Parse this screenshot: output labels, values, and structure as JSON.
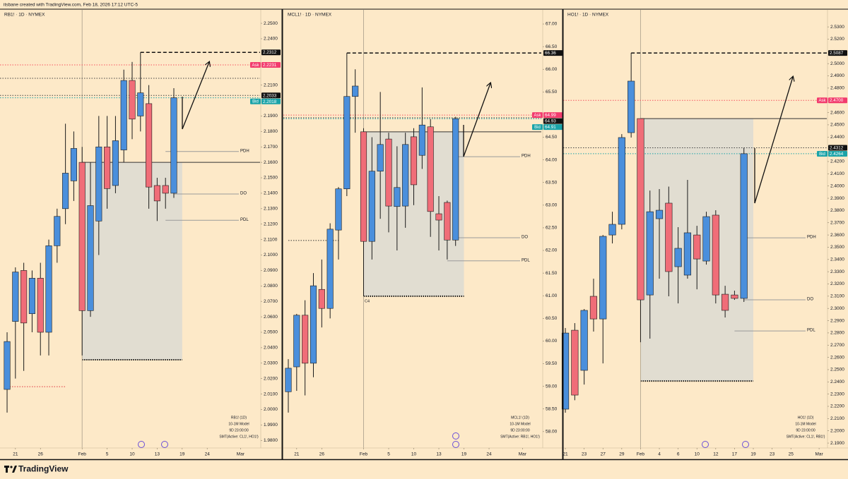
{
  "header": "itsbane created with TradingView.com, Feb 18, 2026 17:12 UTC-5",
  "brand": "TradingView",
  "chart_data": [
    {
      "type": "candlestick",
      "title": "RB1! · 1D · NYMEX",
      "x": [
        0,
        1,
        2,
        3,
        4,
        5,
        6,
        7,
        8,
        9,
        10,
        11,
        12,
        13,
        14,
        15,
        16,
        17,
        18,
        19,
        20
      ],
      "open": [
        2.013,
        2.057,
        2.09,
        2.062,
        2.085,
        2.05,
        2.106,
        2.13,
        2.148,
        2.16,
        2.064,
        2.122,
        2.17,
        2.145,
        2.168,
        2.213,
        2.19,
        2.198,
        2.145,
        2.145,
        2.14
      ],
      "high": [
        2.05,
        2.092,
        2.095,
        2.09,
        2.095,
        2.11,
        2.13,
        2.185,
        2.18,
        2.17,
        2.16,
        2.19,
        2.19,
        2.19,
        2.22,
        2.225,
        2.2312,
        2.21,
        2.15,
        2.15,
        2.208
      ],
      "low": [
        1.998,
        2.02,
        2.025,
        2.05,
        2.035,
        2.035,
        2.095,
        2.12,
        2.135,
        2.035,
        2.06,
        2.1,
        2.13,
        2.14,
        2.16,
        2.175,
        2.18,
        2.13,
        2.122,
        2.13,
        2.137
      ],
      "close": [
        2.044,
        2.089,
        2.056,
        2.085,
        2.05,
        2.106,
        2.125,
        2.153,
        2.169,
        2.064,
        2.132,
        2.17,
        2.143,
        2.174,
        2.213,
        2.188,
        2.205,
        2.144,
        2.135,
        2.14,
        2.2018
      ],
      "up_color": "#4a8fdc",
      "down_color": "#f06d78",
      "xlim": [
        -0.85,
        30.34
      ],
      "ylim": [
        1.9751,
        2.2587
      ],
      "xticks": [
        {
          "value": 1,
          "label": "21"
        },
        {
          "value": 4,
          "label": "26"
        },
        {
          "value": 9,
          "label": "Feb"
        },
        {
          "value": 12,
          "label": "5"
        },
        {
          "value": 15,
          "label": "10"
        },
        {
          "value": 18,
          "label": "13"
        },
        {
          "value": 21,
          "label": "19"
        },
        {
          "value": 24,
          "label": "24"
        },
        {
          "value": 28,
          "label": "Mar"
        }
      ],
      "yticks": [
        {
          "value": 2.25,
          "label": "2.2500"
        },
        {
          "value": 2.24,
          "label": "2.2400"
        },
        {
          "value": 2.21,
          "label": "2.2100"
        },
        {
          "value": 2.19,
          "label": "2.1900"
        },
        {
          "value": 2.18,
          "label": "2.1800"
        },
        {
          "value": 2.17,
          "label": "2.1700"
        },
        {
          "value": 2.16,
          "label": "2.1600"
        },
        {
          "value": 2.15,
          "label": "2.1500"
        },
        {
          "value": 2.14,
          "label": "2.1400"
        },
        {
          "value": 2.13,
          "label": "2.1300"
        },
        {
          "value": 2.12,
          "label": "2.1200"
        },
        {
          "value": 2.11,
          "label": "2.1100"
        },
        {
          "value": 2.1,
          "label": "2.1000"
        },
        {
          "value": 2.09,
          "label": "2.0900"
        },
        {
          "value": 2.08,
          "label": "2.0800"
        },
        {
          "value": 2.07,
          "label": "2.0700"
        },
        {
          "value": 2.06,
          "label": "2.0600"
        },
        {
          "value": 2.05,
          "label": "2.0500"
        },
        {
          "value": 2.04,
          "label": "2.0400"
        },
        {
          "value": 2.03,
          "label": "2.0300"
        },
        {
          "value": 2.02,
          "label": "2.0200"
        },
        {
          "value": 2.01,
          "label": "2.0100"
        },
        {
          "value": 2.0,
          "label": "2.0000"
        },
        {
          "value": 1.99,
          "label": "1.9900"
        },
        {
          "value": 1.98,
          "label": "1.9800"
        }
      ],
      "levels": [
        {
          "value": 2.2312,
          "start": 16,
          "style": "dashed",
          "color": "#111111",
          "tag_color": "#111111"
        },
        {
          "name": "Ask",
          "value": 2.2231,
          "style": "dotted",
          "color": "#f7525f",
          "tag_color": "#f23b6d"
        },
        {
          "value": 2.2144,
          "style": "dotted",
          "color": "#444444"
        },
        {
          "value": 2.2033,
          "style": "dotted",
          "color": "#444444",
          "tag_color": "#111111"
        },
        {
          "name": "Bid",
          "value": 2.2018,
          "style": "dotted",
          "color": "#1aa3a8",
          "tag_color": "#1aa3a8"
        },
        {
          "value": 2.16,
          "start": 9,
          "style": "solid",
          "color": "#333333"
        },
        {
          "name": "PDH",
          "value": 2.167,
          "start": 19,
          "style": "solid",
          "color": "#9a9a9a"
        },
        {
          "name": "DO",
          "value": 2.1395,
          "start": 20,
          "style": "solid",
          "color": "#9a9a9a"
        },
        {
          "name": "PDL",
          "value": 2.1225,
          "start": 19,
          "style": "solid",
          "color": "#9a9a9a"
        },
        {
          "value": 2.0148,
          "start": 0,
          "end": 7,
          "style": "dotted",
          "color": "#e0343f"
        }
      ],
      "box": {
        "x": [
          9,
          21
        ],
        "y": [
          2.0322,
          2.16
        ],
        "color": "#dcdad2"
      },
      "info": [
        "RB1! (1D)",
        "10-1M Model",
        "9D 23:00:00",
        "SMT(Active: CL1!, HO1!)"
      ]
    },
    {
      "type": "candlestick",
      "title": "MCL1! · 1D · NYMEX",
      "x": [
        0,
        1,
        2,
        3,
        4,
        5,
        6,
        7,
        8,
        9,
        10,
        11,
        12,
        13,
        14,
        15,
        16,
        17,
        18,
        19,
        20
      ],
      "open": [
        58.88,
        59.43,
        60.57,
        59.51,
        61.14,
        60.72,
        62.45,
        63.36,
        65.4,
        64.62,
        62.2,
        63.75,
        64.46,
        62.97,
        62.98,
        64.51,
        64.1,
        64.73,
        62.81,
        63.06,
        62.23
      ],
      "high": [
        59.6,
        60.6,
        60.9,
        61.5,
        61.8,
        62.6,
        63.4,
        66.36,
        66.0,
        64.7,
        64.5,
        65.5,
        64.6,
        64.3,
        64.6,
        64.7,
        65.6,
        64.9,
        63.2,
        63.1,
        64.95
      ],
      "low": [
        58.42,
        58.9,
        58.8,
        59.2,
        60.3,
        60.5,
        61.8,
        63.2,
        64.6,
        60.99,
        61.8,
        62.7,
        62.4,
        62.0,
        62.5,
        63.0,
        63.8,
        62.3,
        62.0,
        61.8,
        62.1
      ],
      "close": [
        59.4,
        60.57,
        59.51,
        61.22,
        60.72,
        62.47,
        63.36,
        65.4,
        65.63,
        62.2,
        63.75,
        64.34,
        62.98,
        63.39,
        64.34,
        63.45,
        64.77,
        62.86,
        62.67,
        62.23,
        64.91
      ],
      "up_color": "#4a8fdc",
      "down_color": "#f06d78",
      "xlim": [
        -0.59,
        30.25
      ],
      "ylim": [
        57.639,
        67.312
      ],
      "xticks": [
        {
          "value": 1,
          "label": "21"
        },
        {
          "value": 4,
          "label": "26"
        },
        {
          "value": 9,
          "label": "Feb"
        },
        {
          "value": 12,
          "label": "5"
        },
        {
          "value": 15,
          "label": "10"
        },
        {
          "value": 18,
          "label": "13"
        },
        {
          "value": 21,
          "label": "19"
        },
        {
          "value": 24,
          "label": "24"
        },
        {
          "value": 28,
          "label": "Mar"
        }
      ],
      "yticks": [
        {
          "value": 67,
          "label": "67.00"
        },
        {
          "value": 66.5,
          "label": "66.50"
        },
        {
          "value": 66,
          "label": "66.00"
        },
        {
          "value": 65.5,
          "label": "65.50"
        },
        {
          "value": 64.5,
          "label": "64.50"
        },
        {
          "value": 64,
          "label": "64.00"
        },
        {
          "value": 63.5,
          "label": "63.50"
        },
        {
          "value": 63,
          "label": "63.00"
        },
        {
          "value": 62.5,
          "label": "62.50"
        },
        {
          "value": 62,
          "label": "62.00"
        },
        {
          "value": 61.5,
          "label": "61.50"
        },
        {
          "value": 61,
          "label": "61.00"
        },
        {
          "value": 60.5,
          "label": "60.50"
        },
        {
          "value": 60,
          "label": "60.00"
        },
        {
          "value": 59.5,
          "label": "59.50"
        },
        {
          "value": 59,
          "label": "59.00"
        },
        {
          "value": 58.5,
          "label": "58.50"
        },
        {
          "value": 58,
          "label": "58.00"
        }
      ],
      "levels": [
        {
          "value": 66.36,
          "start": 7,
          "style": "dashed",
          "color": "#111111",
          "tag_color": "#111111"
        },
        {
          "name": "Ask",
          "value": 64.99,
          "style": "dotted",
          "color": "#f7525f",
          "tag_color": "#f23b6d"
        },
        {
          "value": 64.93,
          "style": "dotted",
          "color": "#444444",
          "tag_color": "#111111"
        },
        {
          "name": "Bid",
          "value": 64.91,
          "style": "dotted",
          "color": "#1aa3a8",
          "tag_color": "#1aa3a8"
        },
        {
          "value": 64.62,
          "start": 9,
          "style": "solid",
          "color": "#333333"
        },
        {
          "name": "PDH",
          "value": 64.07,
          "start": 20,
          "style": "solid",
          "color": "#9a9a9a"
        },
        {
          "name": "DO",
          "value": 62.28,
          "start": 20,
          "style": "solid",
          "color": "#9a9a9a"
        },
        {
          "name": "PDL",
          "value": 61.77,
          "start": 19,
          "style": "solid",
          "color": "#9a9a9a"
        },
        {
          "value": 62.22,
          "start": 0,
          "end": 6,
          "style": "dotted",
          "color": "#333333"
        }
      ],
      "box": {
        "x": [
          9,
          21
        ],
        "y": [
          60.99,
          64.62
        ],
        "color": "#dcdad2",
        "note": "C4"
      },
      "info": [
        "MCL1! (1D)",
        "10-1M Model",
        "9D 23:00:00",
        "SMT(Active: RB1!, HO1!)"
      ]
    },
    {
      "type": "candlestick",
      "title": "HO1! · 1D · NYMEX",
      "x": [
        0,
        1,
        2,
        3,
        4,
        5,
        6,
        7,
        8,
        9,
        10,
        11,
        12,
        13,
        14,
        15,
        16,
        17,
        18,
        19
      ],
      "open": [
        2.2177,
        2.2822,
        2.2494,
        2.3099,
        2.2914,
        2.36,
        2.3687,
        2.4436,
        2.4551,
        2.311,
        2.3733,
        2.386,
        2.3341,
        2.3272,
        2.36,
        2.3387,
        2.3762,
        2.3116,
        2.311,
        2.3082
      ],
      "high": [
        2.284,
        2.288,
        2.2995,
        2.3243,
        2.36,
        2.379,
        2.4424,
        2.5087,
        2.4551,
        2.3963,
        2.3975,
        2.3995,
        2.3664,
        2.405,
        2.3675,
        2.379,
        2.3802,
        2.3185,
        2.3145,
        2.4312
      ],
      "low": [
        2.2148,
        2.225,
        2.2378,
        2.2811,
        2.2551,
        2.3531,
        2.3646,
        2.4396,
        2.2724,
        2.2753,
        2.3243,
        2.3099,
        2.3041,
        2.3243,
        2.3156,
        2.3358,
        2.3041,
        2.2926,
        2.307,
        2.3053
      ],
      "close": [
        2.2799,
        2.2292,
        2.2984,
        2.2914,
        2.3589,
        2.3687,
        2.4396,
        2.4857,
        2.307,
        2.379,
        2.3802,
        2.3301,
        2.3491,
        2.3618,
        2.3404,
        2.375,
        2.311,
        2.2984,
        2.3082,
        2.4264
      ],
      "up_color": "#4a8fdc",
      "down_color": "#f06d78",
      "xlim": [
        -0.23,
        27.82
      ],
      "ylim": [
        2.186,
        2.5439
      ],
      "xticks": [
        {
          "value": 0,
          "label": "21"
        },
        {
          "value": 2,
          "label": "23"
        },
        {
          "value": 4,
          "label": "27"
        },
        {
          "value": 6,
          "label": "29"
        },
        {
          "value": 8,
          "label": "Feb"
        },
        {
          "value": 10,
          "label": "4"
        },
        {
          "value": 12,
          "label": "6"
        },
        {
          "value": 14,
          "label": "10"
        },
        {
          "value": 16,
          "label": "12"
        },
        {
          "value": 18,
          "label": "17"
        },
        {
          "value": 20,
          "label": "19"
        },
        {
          "value": 22,
          "label": "23"
        },
        {
          "value": 24,
          "label": "25"
        },
        {
          "value": 27,
          "label": "Mar"
        }
      ],
      "yticks": [
        {
          "value": 2.53,
          "label": "2.5300"
        },
        {
          "value": 2.52,
          "label": "2.5200"
        },
        {
          "value": 2.5,
          "label": "2.5000"
        },
        {
          "value": 2.49,
          "label": "2.4900"
        },
        {
          "value": 2.48,
          "label": "2.4800"
        },
        {
          "value": 2.46,
          "label": "2.4600"
        },
        {
          "value": 2.45,
          "label": "2.4500"
        },
        {
          "value": 2.44,
          "label": "2.4400"
        },
        {
          "value": 2.42,
          "label": "2.4200"
        },
        {
          "value": 2.41,
          "label": "2.4100"
        },
        {
          "value": 2.4,
          "label": "2.4000"
        },
        {
          "value": 2.39,
          "label": "2.3900"
        },
        {
          "value": 2.38,
          "label": "2.3800"
        },
        {
          "value": 2.37,
          "label": "2.3700"
        },
        {
          "value": 2.36,
          "label": "2.3600"
        },
        {
          "value": 2.35,
          "label": "2.3500"
        },
        {
          "value": 2.34,
          "label": "2.3400"
        },
        {
          "value": 2.33,
          "label": "2.3300"
        },
        {
          "value": 2.32,
          "label": "2.3200"
        },
        {
          "value": 2.31,
          "label": "2.3100"
        },
        {
          "value": 2.3,
          "label": "2.3000"
        },
        {
          "value": 2.29,
          "label": "2.2900"
        },
        {
          "value": 2.28,
          "label": "2.2800"
        },
        {
          "value": 2.27,
          "label": "2.2700"
        },
        {
          "value": 2.26,
          "label": "2.2600"
        },
        {
          "value": 2.25,
          "label": "2.2500"
        },
        {
          "value": 2.24,
          "label": "2.2400"
        },
        {
          "value": 2.23,
          "label": "2.2300"
        },
        {
          "value": 2.22,
          "label": "2.2200"
        },
        {
          "value": 2.21,
          "label": "2.2100"
        },
        {
          "value": 2.2,
          "label": "2.2000"
        },
        {
          "value": 2.19,
          "label": "2.1900"
        }
      ],
      "levels": [
        {
          "value": 2.5087,
          "start": 7,
          "style": "dashed",
          "color": "#111111",
          "tag_color": "#111111"
        },
        {
          "name": "Ask",
          "value": 2.47,
          "value_label": "2.4700",
          "style": "dotted",
          "color": "#f7525f",
          "tag_color": "#f23b6d"
        },
        {
          "value": 2.4551,
          "start": 8,
          "style": "solid",
          "color": "#333333"
        },
        {
          "value": 2.4312,
          "style": "dotted",
          "color": "#444444",
          "tag_color": "#111111"
        },
        {
          "name": "Bid",
          "value": 2.4264,
          "style": "dotted",
          "color": "#1aa3a8",
          "tag_color": "#1aa3a8"
        },
        {
          "name": "PDH",
          "value": 2.3577,
          "start": 19,
          "style": "solid",
          "color": "#9a9a9a"
        },
        {
          "name": "DO",
          "value": 2.307,
          "start": 19,
          "style": "solid",
          "color": "#9a9a9a"
        },
        {
          "name": "PDL",
          "value": 2.2816,
          "start": 18,
          "style": "solid",
          "color": "#9a9a9a"
        }
      ],
      "box": {
        "x": [
          8,
          20
        ],
        "y": [
          2.2407,
          2.4551
        ],
        "color": "#dcdad2"
      },
      "info": [
        "HO1! (1D)",
        "10-1M Model",
        "9D 23:00:00",
        "SMT(Active: CL1!, RB1!)"
      ]
    }
  ]
}
